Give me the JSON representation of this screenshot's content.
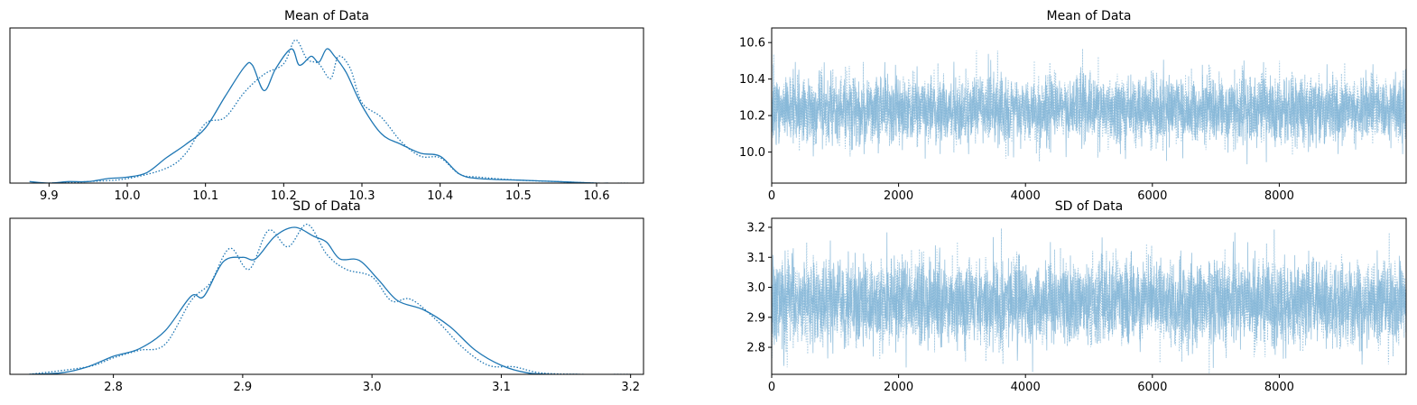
{
  "chart_data": [
    {
      "type": "line",
      "panel": "kde-mean",
      "title": "Mean of Data",
      "xlim": [
        9.85,
        10.66
      ],
      "ylim": [
        0,
        1.04
      ],
      "yticks": "hidden",
      "xticks": [
        9.9,
        10.0,
        10.1,
        10.2,
        10.3,
        10.4,
        10.5,
        10.6
      ],
      "xtick_labels": [
        "9.9",
        "10.0",
        "10.1",
        "10.2",
        "10.3",
        "10.4",
        "10.5",
        "10.6"
      ],
      "series": [
        {
          "style": "solid",
          "x": [
            9.875,
            9.9,
            9.925,
            9.95,
            9.975,
            10.0,
            10.025,
            10.05,
            10.075,
            10.1,
            10.125,
            10.15,
            10.16,
            10.175,
            10.19,
            10.21,
            10.22,
            10.235,
            10.245,
            10.255,
            10.265,
            10.28,
            10.3,
            10.325,
            10.35,
            10.375,
            10.4,
            10.425,
            10.45,
            10.5,
            10.55,
            10.6,
            10.615
          ],
          "y": [
            0.01,
            0.0,
            0.01,
            0.01,
            0.03,
            0.04,
            0.07,
            0.17,
            0.26,
            0.37,
            0.58,
            0.78,
            0.79,
            0.62,
            0.77,
            0.9,
            0.79,
            0.85,
            0.81,
            0.9,
            0.85,
            0.74,
            0.52,
            0.33,
            0.26,
            0.2,
            0.18,
            0.06,
            0.03,
            0.02,
            0.01,
            0.0,
            0.0
          ]
        },
        {
          "style": "dotted",
          "x": [
            9.9,
            9.95,
            10.0,
            10.05,
            10.075,
            10.1,
            10.125,
            10.15,
            10.175,
            10.2,
            10.215,
            10.23,
            10.245,
            10.26,
            10.27,
            10.285,
            10.3,
            10.325,
            10.35,
            10.375,
            10.4,
            10.425,
            10.45,
            10.5,
            10.55,
            10.6,
            10.64
          ],
          "y": [
            0.0,
            0.01,
            0.03,
            0.1,
            0.2,
            0.4,
            0.44,
            0.61,
            0.73,
            0.8,
            0.96,
            0.83,
            0.8,
            0.7,
            0.85,
            0.77,
            0.54,
            0.44,
            0.28,
            0.18,
            0.17,
            0.06,
            0.04,
            0.02,
            0.01,
            0.0,
            0.0
          ]
        }
      ]
    },
    {
      "type": "line",
      "panel": "trace-mean",
      "title": "Mean of Data",
      "xlim": [
        0,
        10000
      ],
      "ylim": [
        9.83,
        10.68
      ],
      "xticks": [
        0,
        2000,
        4000,
        6000,
        8000
      ],
      "xtick_labels": [
        "0",
        "2000",
        "4000",
        "6000",
        "8000"
      ],
      "yticks": [
        10.0,
        10.2,
        10.4,
        10.6
      ],
      "ytick_labels": [
        "10.0",
        "10.2",
        "10.4",
        "10.6"
      ],
      "draws": 10000,
      "series": [
        {
          "style": "solid",
          "mean": 10.23,
          "sd": 0.09
        },
        {
          "style": "dotted",
          "mean": 10.23,
          "sd": 0.09
        }
      ]
    },
    {
      "type": "line",
      "panel": "kde-sd",
      "title": "SD of Data",
      "xlim": [
        2.72,
        3.21
      ],
      "ylim": [
        0,
        1.04
      ],
      "yticks": "hidden",
      "xticks": [
        2.8,
        2.9,
        3.0,
        3.1,
        3.2
      ],
      "xtick_labels": [
        "2.8",
        "2.9",
        "3.0",
        "3.1",
        "3.2"
      ],
      "series": [
        {
          "style": "solid",
          "x": [
            2.735,
            2.76,
            2.78,
            2.8,
            2.82,
            2.84,
            2.86,
            2.87,
            2.885,
            2.9,
            2.91,
            2.925,
            2.94,
            2.955,
            2.965,
            2.975,
            2.99,
            3.005,
            3.02,
            3.04,
            3.06,
            3.08,
            3.1,
            3.12,
            3.14,
            3.16
          ],
          "y": [
            0.0,
            0.01,
            0.05,
            0.12,
            0.17,
            0.29,
            0.52,
            0.52,
            0.75,
            0.78,
            0.77,
            0.92,
            0.98,
            0.92,
            0.88,
            0.77,
            0.76,
            0.63,
            0.49,
            0.43,
            0.32,
            0.16,
            0.06,
            0.01,
            0.0,
            0.0
          ]
        },
        {
          "style": "dotted",
          "x": [
            2.735,
            2.78,
            2.8,
            2.82,
            2.84,
            2.86,
            2.875,
            2.89,
            2.905,
            2.92,
            2.935,
            2.95,
            2.965,
            2.98,
            3.0,
            3.015,
            3.03,
            3.05,
            3.07,
            3.09,
            3.11,
            3.13,
            3.16,
            3.2
          ],
          "y": [
            0.0,
            0.05,
            0.11,
            0.16,
            0.2,
            0.49,
            0.61,
            0.84,
            0.7,
            0.96,
            0.85,
            1.0,
            0.8,
            0.7,
            0.65,
            0.49,
            0.5,
            0.36,
            0.18,
            0.06,
            0.05,
            0.01,
            0.0,
            0.0
          ]
        }
      ]
    },
    {
      "type": "line",
      "panel": "trace-sd",
      "title": "SD of Data",
      "xlim": [
        0,
        10000
      ],
      "ylim": [
        2.71,
        3.23
      ],
      "xticks": [
        0,
        2000,
        4000,
        6000,
        8000
      ],
      "xtick_labels": [
        "0",
        "2000",
        "4000",
        "6000",
        "8000"
      ],
      "yticks": [
        2.8,
        2.9,
        3.0,
        3.1,
        3.2
      ],
      "ytick_labels": [
        "2.8",
        "2.9",
        "3.0",
        "3.1",
        "3.2"
      ],
      "draws": 10000,
      "series": [
        {
          "style": "solid",
          "mean": 2.95,
          "sd": 0.07
        },
        {
          "style": "dotted",
          "mean": 2.95,
          "sd": 0.07
        }
      ]
    }
  ],
  "colors": {
    "kde_line": "#1f77b4",
    "trace_line": "#7fb3d5",
    "axis": "#000000",
    "background": "#ffffff"
  }
}
